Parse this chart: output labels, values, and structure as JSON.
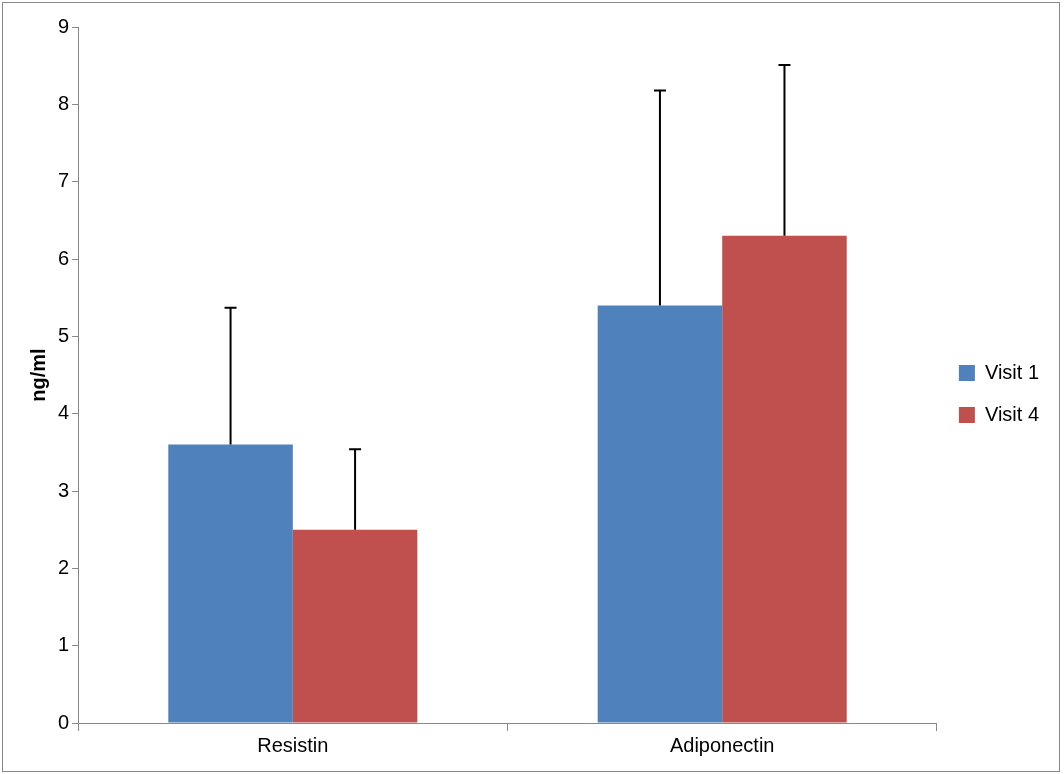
{
  "chart_data": {
    "type": "bar",
    "ylabel": "ng/ml",
    "categories": [
      "Resistin",
      "Adiponectin"
    ],
    "series": [
      {
        "name": "Visit 1",
        "color": "#4f81bd",
        "values": [
          3.6,
          5.4
        ],
        "errors": [
          [
            3.6,
            5.37
          ],
          [
            5.4,
            8.18
          ]
        ]
      },
      {
        "name": "Visit 4",
        "color": "#c0504d",
        "values": [
          2.5,
          6.3
        ],
        "errors": [
          [
            2.5,
            3.54
          ],
          [
            6.3,
            8.51
          ]
        ]
      }
    ],
    "ylim": [
      0,
      9
    ],
    "yticks": [
      0,
      1,
      2,
      3,
      4,
      5,
      6,
      7,
      8,
      9
    ],
    "grid": false,
    "legend": "right"
  }
}
